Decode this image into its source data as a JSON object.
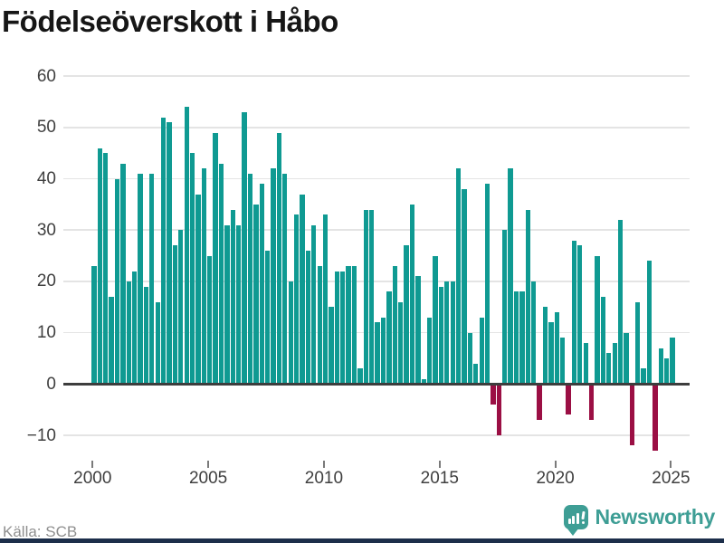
{
  "title": "Födelseöverskott i Håbo",
  "source": "Källa: SCB",
  "branding": {
    "name": "Newsworthy",
    "icon": "newsworthy-speech-bubble-chart-icon"
  },
  "colors": {
    "positive_bar": "#0f9a92",
    "negative_bar": "#9b0f44",
    "grid": "#e4e4e4",
    "zero_line": "#3d3d3d",
    "axis_text": "#3f3f3f",
    "title_text": "#161616",
    "source_text": "#8f8f8f",
    "brand_teal": "#3e9e95",
    "footer_strip": "#1c2e4a"
  },
  "chart_data": {
    "type": "bar",
    "title": "Födelseöverskott i Håbo",
    "x_unit": "quarter",
    "start": "2000Q1",
    "end": "2025Q1",
    "x_tick_labels": [
      "2000",
      "2005",
      "2010",
      "2015",
      "2020",
      "2025"
    ],
    "y_ticks": [
      60,
      50,
      40,
      30,
      20,
      10,
      0,
      -10
    ],
    "ylim": [
      -14,
      62
    ],
    "grid": "horizontal",
    "legend": "none",
    "series": [
      {
        "name": "Födelseöverskott",
        "values": [
          23,
          46,
          45,
          17,
          40,
          43,
          20,
          22,
          41,
          19,
          41,
          16,
          52,
          51,
          27,
          30,
          54,
          45,
          37,
          42,
          25,
          49,
          43,
          31,
          34,
          31,
          53,
          41,
          35,
          39,
          26,
          42,
          49,
          41,
          20,
          33,
          37,
          26,
          31,
          23,
          33,
          15,
          22,
          22,
          23,
          23,
          3,
          34,
          34,
          12,
          13,
          18,
          23,
          16,
          27,
          35,
          21,
          1,
          13,
          25,
          19,
          20,
          20,
          42,
          38,
          10,
          4,
          13,
          39,
          -4,
          -10,
          30,
          42,
          18,
          18,
          34,
          20,
          -7,
          15,
          12,
          14,
          9,
          -6,
          28,
          27,
          8,
          -7,
          25,
          17,
          6,
          8,
          32,
          10,
          -12,
          16,
          3,
          24,
          -13,
          7,
          5,
          9
        ]
      }
    ]
  }
}
